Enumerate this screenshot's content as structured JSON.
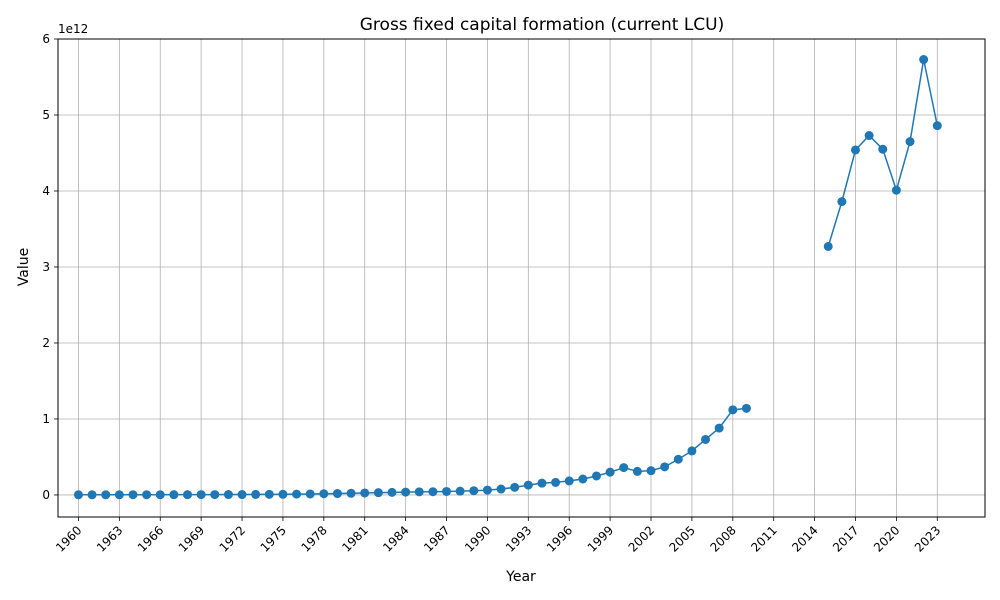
{
  "chart_data": {
    "type": "line",
    "title": "Gross fixed capital formation (current LCU)",
    "xlabel": "Year",
    "ylabel": "Value",
    "y_offset_label": "1e12",
    "y_scale": 1000000000000.0,
    "grid": true,
    "xlim": [
      1958.5,
      2026.5
    ],
    "ylim": [
      -0.29,
      6.0
    ],
    "x_ticks": [
      1960,
      1963,
      1966,
      1969,
      1972,
      1975,
      1978,
      1981,
      1984,
      1987,
      1990,
      1993,
      1996,
      1999,
      2002,
      2005,
      2008,
      2011,
      2014,
      2017,
      2020,
      2023
    ],
    "y_ticks": [
      0,
      1,
      2,
      3,
      4,
      5,
      6
    ],
    "series": [
      {
        "name": "Gross fixed capital formation",
        "color": "#1f77b4",
        "x": [
          1960,
          1961,
          1962,
          1963,
          1964,
          1965,
          1966,
          1967,
          1968,
          1969,
          1970,
          1971,
          1972,
          1973,
          1974,
          1975,
          1976,
          1977,
          1978,
          1979,
          1980,
          1981,
          1982,
          1983,
          1984,
          1985,
          1986,
          1987,
          1988,
          1989,
          1990,
          1991,
          1992,
          1993,
          1994,
          1995,
          1996,
          1997,
          1998,
          1999,
          2000,
          2001,
          2002,
          2003,
          2004,
          2005,
          2006,
          2007,
          2008,
          2009,
          2010,
          2011,
          2012,
          2013,
          2014,
          2015,
          2016,
          2017,
          2018,
          2019,
          2020,
          2021,
          2022,
          2023
        ],
        "values": [
          0.002,
          0.002,
          0.002,
          0.002,
          0.003,
          0.003,
          0.003,
          0.004,
          0.004,
          0.005,
          0.005,
          0.006,
          0.006,
          0.007,
          0.008,
          0.009,
          0.011,
          0.013,
          0.016,
          0.019,
          0.022,
          0.026,
          0.03,
          0.034,
          0.038,
          0.041,
          0.043,
          0.046,
          0.05,
          0.056,
          0.064,
          0.078,
          0.1,
          0.13,
          0.155,
          0.165,
          0.185,
          0.21,
          0.25,
          0.3,
          0.36,
          0.31,
          0.32,
          0.37,
          0.47,
          0.58,
          0.73,
          0.88,
          1.12,
          1.14,
          null,
          null,
          null,
          null,
          null,
          3.27,
          3.86,
          4.54,
          4.73,
          4.55,
          4.01,
          4.65,
          5.73,
          4.86
        ]
      }
    ]
  }
}
